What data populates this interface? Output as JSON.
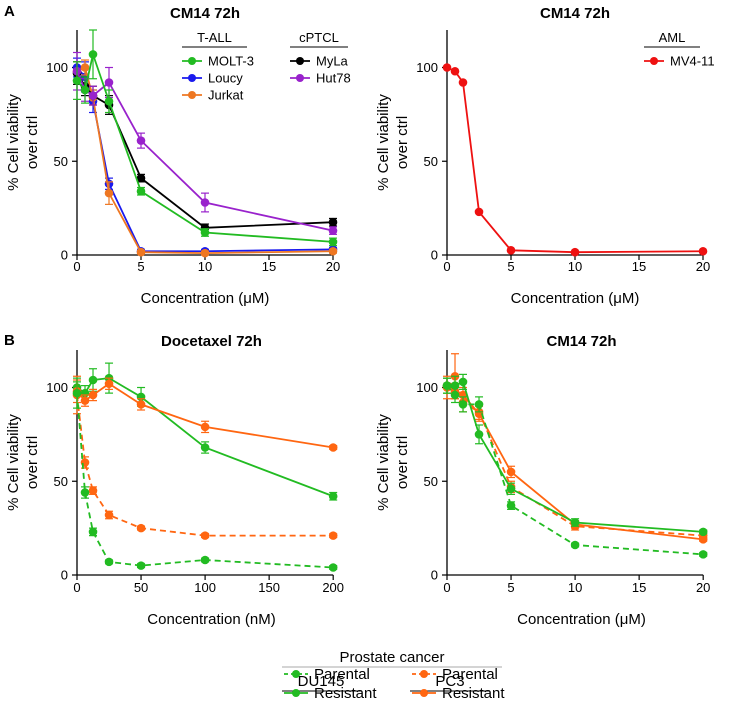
{
  "figure": {
    "panel_labels": [
      "A",
      "B"
    ],
    "colors": {
      "MOLT-3": "#22bb22",
      "Loucy": "#1a1aee",
      "Jurkat": "#ee7722",
      "MyLa": "#000000",
      "Hut78": "#9922cc",
      "MV4-11": "#ee1111",
      "DU145": "#22bb22",
      "PC3": "#ff6611"
    },
    "legend_B": {
      "title": "Prostate cancer",
      "groups": [
        {
          "name": "DU145",
          "entries": [
            {
              "label": "Parental",
              "style": "dashed"
            },
            {
              "label": "Resistant",
              "style": "solid"
            }
          ]
        },
        {
          "name": "PC3",
          "entries": [
            {
              "label": "Parental",
              "style": "dashed"
            },
            {
              "label": "Resistant",
              "style": "solid"
            }
          ]
        }
      ]
    }
  },
  "chart_data": [
    {
      "type": "line",
      "title": "CM14 72h",
      "xlabel": "Concentration (μM)",
      "ylabel": [
        "% Cell viability",
        "over ctrl"
      ],
      "xlim": [
        0,
        20
      ],
      "ylim": [
        0,
        120
      ],
      "xticks": [
        0,
        5,
        10,
        15,
        20
      ],
      "yticks": [
        0,
        50,
        100
      ],
      "legend_groups": [
        {
          "title": "T-ALL",
          "items": [
            "MOLT-3",
            "Loucy",
            "Jurkat"
          ]
        },
        {
          "title": "cPTCL",
          "items": [
            "MyLa",
            "Hut78"
          ]
        }
      ],
      "series": [
        {
          "name": "Loucy",
          "color": "#1a1aee",
          "x": [
            0,
            0.625,
            1.25,
            2.5,
            5,
            10,
            20
          ],
          "y": [
            100,
            95,
            82,
            38,
            2,
            2,
            3
          ],
          "err": [
            5,
            8,
            6,
            3,
            1,
            1,
            1
          ]
        },
        {
          "name": "Jurkat",
          "color": "#ee7722",
          "x": [
            0,
            0.625,
            1.25,
            2.5,
            5,
            10,
            20
          ],
          "y": [
            98,
            100,
            84,
            33,
            1.5,
            1,
            2
          ],
          "err": [
            5,
            4,
            4,
            6,
            1,
            1,
            1
          ]
        },
        {
          "name": "MyLa",
          "color": "#000000",
          "x": [
            0,
            0.625,
            1.25,
            2.5,
            5,
            10,
            20
          ],
          "y": [
            97,
            90,
            85,
            80,
            41,
            14.5,
            17.5
          ],
          "err": [
            6,
            5,
            5,
            5,
            2,
            2,
            2
          ]
        },
        {
          "name": "Hut78",
          "color": "#9922cc",
          "x": [
            0,
            0.625,
            1.25,
            2.5,
            5,
            10,
            20
          ],
          "y": [
            98,
            88,
            85,
            92,
            61,
            28,
            13
          ],
          "err": [
            10,
            6,
            5,
            8,
            4,
            5,
            2
          ]
        },
        {
          "name": "MOLT-3",
          "color": "#22bb22",
          "x": [
            0,
            0.625,
            1.25,
            2.5,
            5,
            10,
            20
          ],
          "y": [
            93,
            88,
            107,
            82,
            34,
            12,
            7
          ],
          "err": [
            10,
            7,
            13,
            6,
            2,
            2,
            2
          ]
        }
      ]
    },
    {
      "type": "line",
      "title": "CM14 72h",
      "xlabel": "Concentration (μM)",
      "ylabel": [
        "% Cell viability",
        "over ctrl"
      ],
      "xlim": [
        0,
        20
      ],
      "ylim": [
        0,
        120
      ],
      "xticks": [
        0,
        5,
        10,
        15,
        20
      ],
      "yticks": [
        0,
        50,
        100
      ],
      "legend_groups": [
        {
          "title": "AML",
          "items": [
            "MV4-11"
          ]
        }
      ],
      "series": [
        {
          "name": "MV4-11",
          "color": "#ee1111",
          "x": [
            0,
            0.625,
            1.25,
            2.5,
            5,
            10,
            20
          ],
          "y": [
            100,
            98,
            92,
            23,
            2.5,
            1.5,
            2
          ],
          "err": [
            0,
            0,
            0,
            0,
            0,
            0,
            0
          ]
        }
      ]
    },
    {
      "type": "line",
      "title": "Docetaxel 72h",
      "xlabel": "Concentration (nM)",
      "ylabel": [
        "% Cell viability",
        "over ctrl"
      ],
      "xlim": [
        0,
        210
      ],
      "ylim": [
        0,
        120
      ],
      "xticks": [
        0,
        50,
        100,
        150,
        200
      ],
      "yticks": [
        0,
        50,
        100
      ],
      "series": [
        {
          "name": "DU145 Resistant",
          "color": "#22bb22",
          "dash": false,
          "x": [
            0,
            6.25,
            12.5,
            25,
            50,
            100,
            200
          ],
          "y": [
            100,
            97,
            104,
            105,
            95,
            68,
            42
          ],
          "err": [
            3,
            4,
            6,
            8,
            5,
            3,
            2
          ]
        },
        {
          "name": "PC3 Resistant",
          "color": "#ff6611",
          "dash": false,
          "x": [
            0,
            6.25,
            12.5,
            25,
            50,
            100,
            200
          ],
          "y": [
            98,
            93,
            96,
            102,
            91,
            79,
            68
          ],
          "err": [
            6,
            3,
            3,
            3,
            3,
            3,
            1
          ]
        },
        {
          "name": "PC3 Parental",
          "color": "#ff6611",
          "dash": true,
          "x": [
            0,
            6.25,
            12.5,
            25,
            50,
            100,
            200
          ],
          "y": [
            96,
            60,
            45,
            32,
            25,
            21,
            21
          ],
          "err": [
            10,
            3,
            2,
            2,
            1,
            1,
            1
          ]
        },
        {
          "name": "DU145 Parental",
          "color": "#22bb22",
          "dash": true,
          "x": [
            0,
            6.25,
            12.5,
            25,
            50,
            100,
            200
          ],
          "y": [
            97,
            44,
            23,
            7,
            5,
            8,
            4
          ],
          "err": [
            8,
            3,
            2,
            1,
            1,
            1,
            1
          ]
        }
      ]
    },
    {
      "type": "line",
      "title": "CM14 72h",
      "xlabel": "Concentration (μM)",
      "ylabel": [
        "% Cell viability",
        "over ctrl"
      ],
      "xlim": [
        0,
        21
      ],
      "ylim": [
        0,
        120
      ],
      "xticks": [
        0,
        5,
        10,
        15,
        20
      ],
      "yticks": [
        0,
        50,
        100
      ],
      "series": [
        {
          "name": "PC3 Parental",
          "color": "#ff6611",
          "dash": true,
          "x": [
            0,
            0.625,
            1.25,
            2.5,
            5,
            10,
            20
          ],
          "y": [
            100,
            106,
            92,
            87,
            47,
            26,
            21
          ],
          "err": [
            6,
            12,
            5,
            4,
            3,
            2,
            1
          ]
        },
        {
          "name": "PC3 Resistant",
          "color": "#ff6611",
          "dash": false,
          "x": [
            0,
            0.625,
            1.25,
            2.5,
            5,
            10,
            20
          ],
          "y": [
            101,
            98,
            96,
            86,
            55,
            27,
            19
          ],
          "err": [
            4,
            4,
            4,
            4,
            3,
            2,
            1
          ]
        },
        {
          "name": "DU145 Resistant",
          "color": "#22bb22",
          "dash": false,
          "x": [
            0,
            0.625,
            1.25,
            2.5,
            5,
            10,
            20
          ],
          "y": [
            101,
            101,
            103,
            75,
            46,
            28,
            23
          ],
          "err": [
            4,
            5,
            4,
            5,
            3,
            2,
            1
          ]
        },
        {
          "name": "DU145 Parental",
          "color": "#22bb22",
          "dash": true,
          "x": [
            0,
            0.625,
            1.25,
            2.5,
            5,
            10,
            20
          ],
          "y": [
            101,
            96,
            91,
            91,
            37,
            16,
            11
          ],
          "err": [
            4,
            4,
            4,
            4,
            2,
            1,
            1
          ]
        }
      ]
    }
  ]
}
